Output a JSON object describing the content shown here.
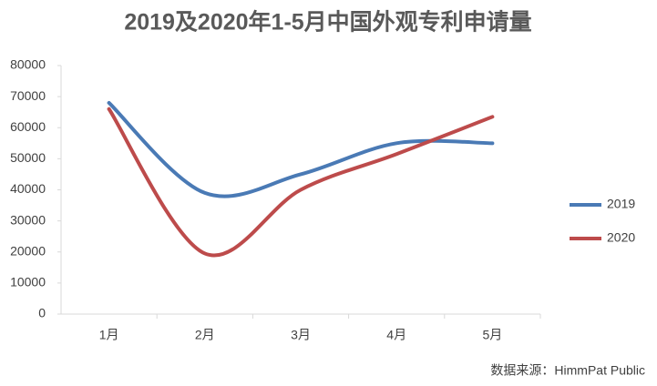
{
  "chart_data": {
    "type": "line",
    "title": "2019及2020年1-5月中国外观专利申请量",
    "categories": [
      "1月",
      "2月",
      "3月",
      "4月",
      "5月"
    ],
    "series": [
      {
        "name": "2019",
        "color": "#4a7ab5",
        "values": [
          68000,
          39000,
          45000,
          55000,
          55000
        ]
      },
      {
        "name": "2020",
        "color": "#bd4b4b",
        "values": [
          66000,
          19500,
          40000,
          51500,
          63500
        ]
      }
    ],
    "ylim": [
      0,
      80000
    ],
    "yticks": [
      0,
      10000,
      20000,
      30000,
      40000,
      50000,
      60000,
      70000,
      80000
    ],
    "smooth": true,
    "legend": "right",
    "source": "数据来源：HimmPat Public"
  }
}
